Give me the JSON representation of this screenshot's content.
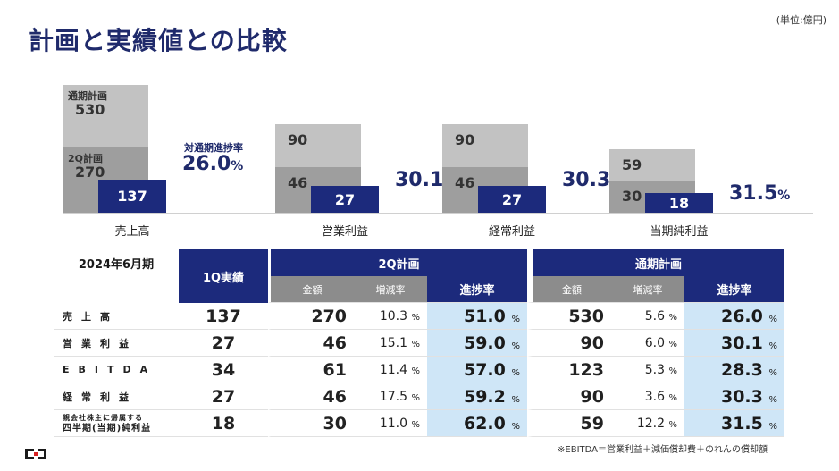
{
  "page": {
    "title": "計画と実績値との比較",
    "unit": "(単位:億円)",
    "note": "※EBITDA＝営業利益＋減価償却費＋のれんの償却額"
  },
  "chart_data": {
    "type": "bar",
    "categories": [
      "売上高",
      "営業利益",
      "経常利益",
      "当期純利益"
    ],
    "series": [
      {
        "name": "通期計画",
        "values": [
          530,
          90,
          90,
          59
        ]
      },
      {
        "name": "2Q計画",
        "values": [
          270,
          46,
          46,
          30
        ]
      },
      {
        "name": "1Q実績",
        "values": [
          137,
          27,
          27,
          18
        ]
      }
    ],
    "progress_rate": [
      "26.0",
      "30.1",
      "30.3",
      "31.5"
    ],
    "progress_unit": "%",
    "labels": {
      "annual_plan": "通期計画",
      "q2_plan": "2Q計画",
      "progress_caption": "対通期進捗率"
    }
  },
  "table": {
    "period": "2024年6月期",
    "col_actual": "1Q実績",
    "col_q2": "2Q計画",
    "col_fy": "通期計画",
    "sub_amount": "金額",
    "sub_change": "増減率",
    "sub_progress": "進捗率",
    "pct": "%",
    "rows": [
      {
        "label": "売上高",
        "actual": "137",
        "q2_amount": "270",
        "q2_change": "10.3",
        "q2_progress": "51.0",
        "fy_amount": "530",
        "fy_change": "5.6",
        "fy_progress": "26.0"
      },
      {
        "label": "営業利益",
        "actual": "27",
        "q2_amount": "46",
        "q2_change": "15.1",
        "q2_progress": "59.0",
        "fy_amount": "90",
        "fy_change": "6.0",
        "fy_progress": "30.1"
      },
      {
        "label": "EBITDA",
        "actual": "34",
        "q2_amount": "61",
        "q2_change": "11.4",
        "q2_progress": "57.0",
        "fy_amount": "123",
        "fy_change": "5.3",
        "fy_progress": "28.3"
      },
      {
        "label": "経常利益",
        "actual": "27",
        "q2_amount": "46",
        "q2_change": "17.5",
        "q2_progress": "59.2",
        "fy_amount": "90",
        "fy_change": "3.6",
        "fy_progress": "30.3"
      },
      {
        "label_line1": "親会社株主に帰属する",
        "label_line2": "四半期(当期)純利益",
        "actual": "18",
        "q2_amount": "30",
        "q2_change": "11.0",
        "q2_progress": "62.0",
        "fy_amount": "59",
        "fy_change": "12.2",
        "fy_progress": "31.5"
      }
    ]
  }
}
